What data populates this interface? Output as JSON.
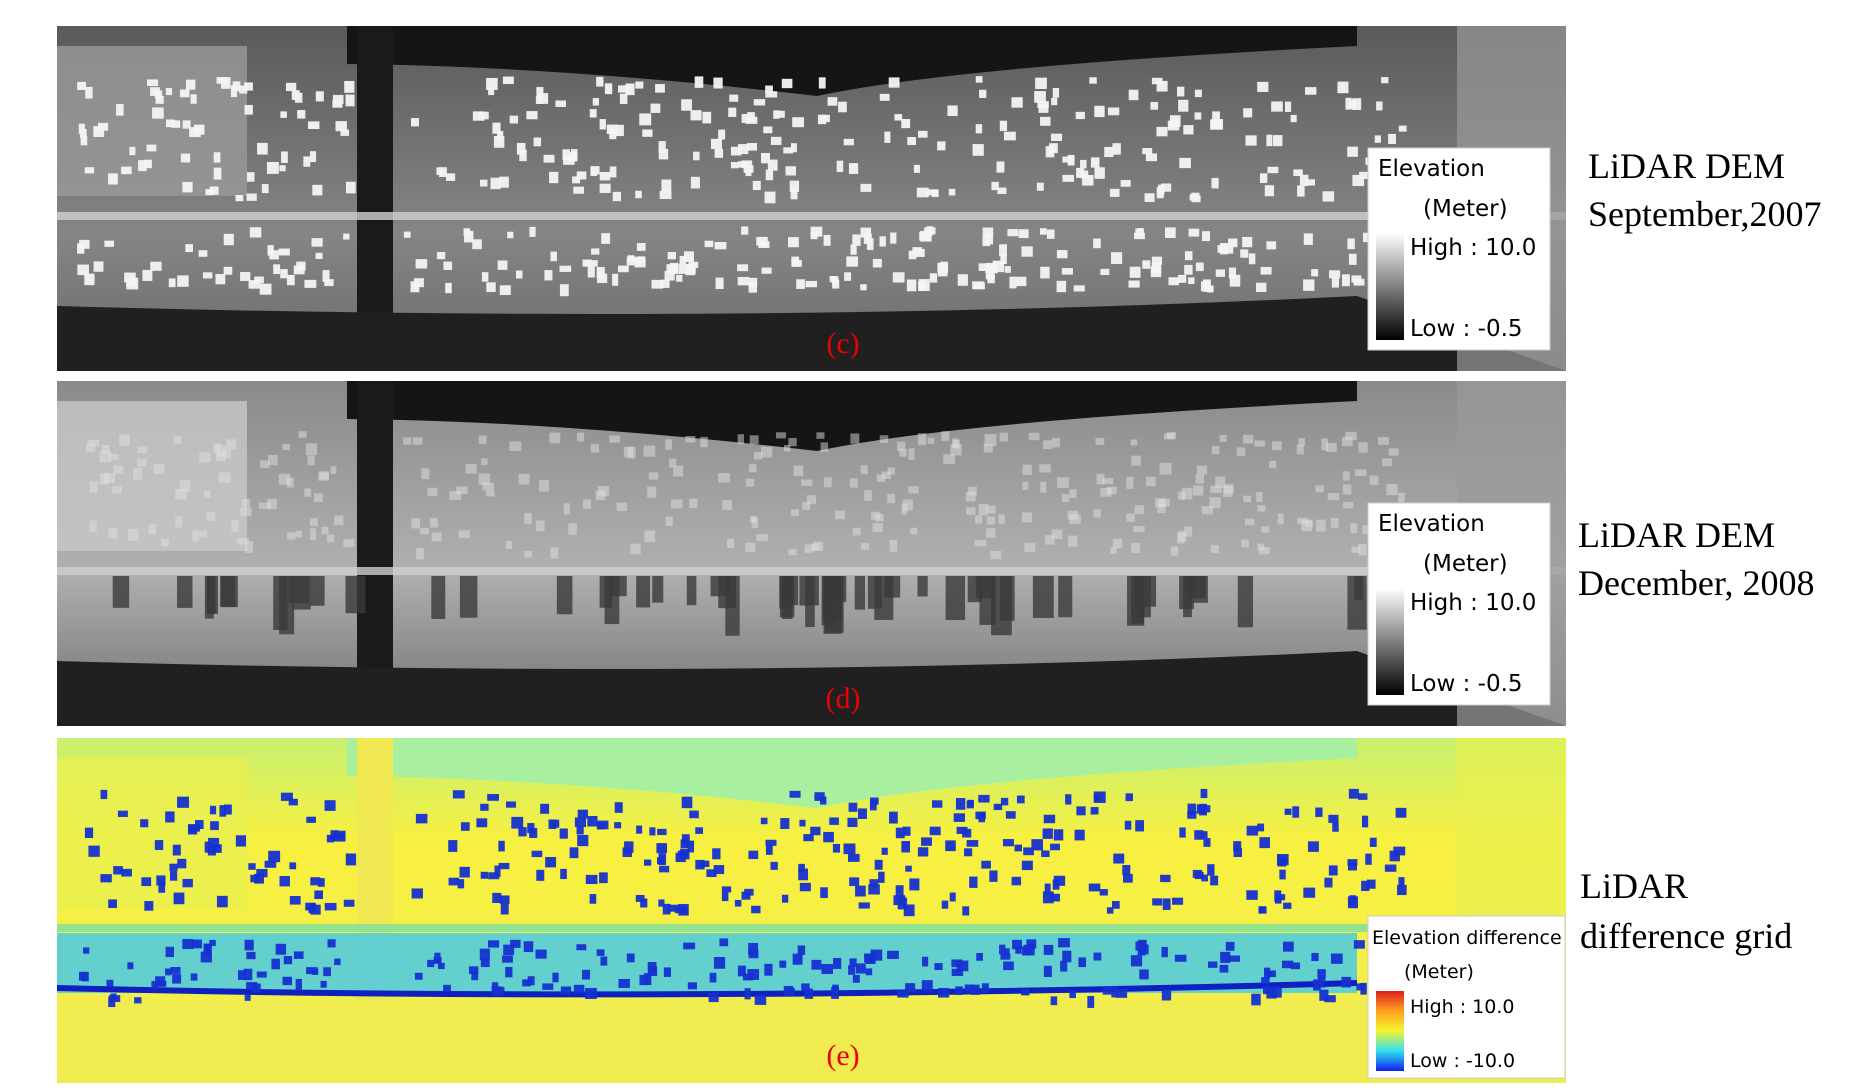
{
  "panels": [
    {
      "label": "(c)",
      "legend": {
        "title": "Elevation",
        "unit": "(Meter)",
        "high": "High : 10.0",
        "low": "Low : -0.5"
      },
      "caption": [
        "LiDAR DEM",
        "September,2007"
      ]
    },
    {
      "label": "(d)",
      "legend": {
        "title": "Elevation",
        "unit": "(Meter)",
        "high": "High : 10.0",
        "low": "Low : -0.5"
      },
      "caption": [
        "LiDAR DEM",
        "December, 2008"
      ]
    },
    {
      "label": "(e)",
      "legend": {
        "title": "Elevation difference",
        "unit": "(Meter)",
        "high": "High : 10.0",
        "low": "Low : -10.0"
      },
      "caption": [
        "LiDAR",
        "difference grid"
      ]
    }
  ]
}
